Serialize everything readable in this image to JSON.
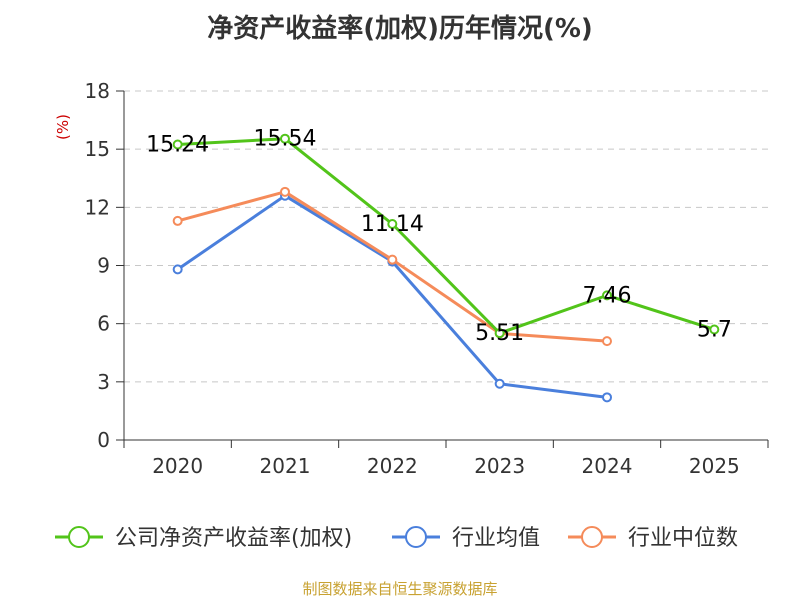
{
  "chart_data": {
    "type": "line",
    "title": "净资产收益率(加权)历年情况(%)",
    "ylabel": "(%)",
    "xlabel": "",
    "categories": [
      "2020",
      "2021",
      "2022",
      "2023",
      "2024",
      "2025"
    ],
    "ylim": [
      0,
      18
    ],
    "yticks": [
      0,
      3,
      6,
      9,
      12,
      15,
      18
    ],
    "grid": true,
    "legend_position": "bottom",
    "series": [
      {
        "name": "公司净资产收益率(加权)",
        "color": "#52c41a",
        "values": [
          15.24,
          15.54,
          11.14,
          5.51,
          7.46,
          5.7
        ],
        "labels": [
          "15.24",
          "15.54",
          "11.14",
          "5.51",
          "7.46",
          "5.7"
        ]
      },
      {
        "name": "行业均值",
        "color": "#4a7fdc",
        "values": [
          8.8,
          12.6,
          9.2,
          2.9,
          2.2,
          null
        ]
      },
      {
        "name": "行业中位数",
        "color": "#f58b5a",
        "values": [
          11.3,
          12.8,
          9.3,
          5.5,
          5.1,
          null
        ]
      }
    ]
  },
  "source": "制图数据来自恒生聚源数据库"
}
